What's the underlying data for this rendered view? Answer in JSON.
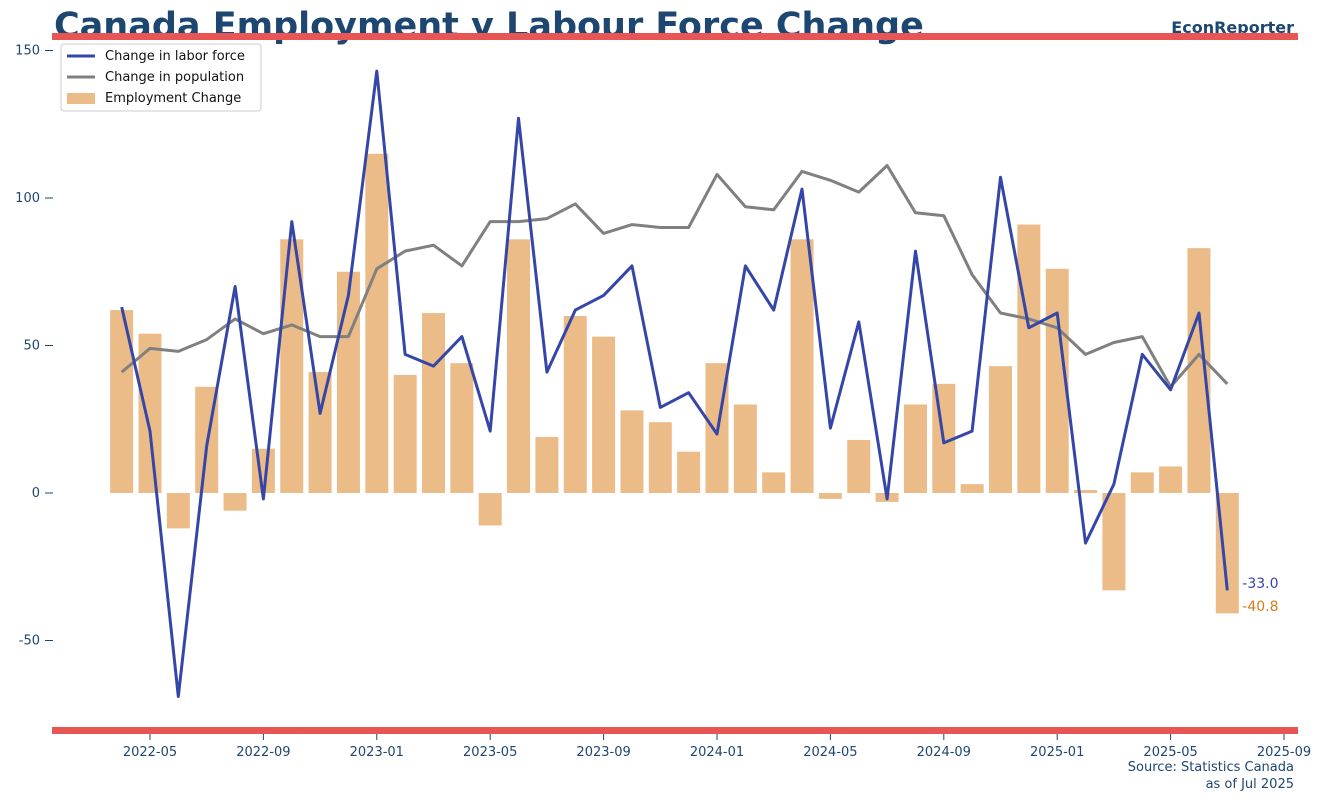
{
  "header": {
    "title": "Canada Employment v Labour Force Change",
    "brand": "EconReporter"
  },
  "footer": {
    "source_line1": "Source: Statistics Canada",
    "source_line2": "as of Jul 2025"
  },
  "colors": {
    "labor_force": "#3446a8",
    "population": "#808080",
    "employment": "#ebbb88",
    "accent_rule": "#e85555",
    "text": "#1d4770",
    "employment_label": "#d97d1a"
  },
  "chart_data": {
    "type": "bar",
    "title": "Canada Employment v Labour Force Change",
    "xlabel": "",
    "ylabel": "",
    "x": [
      "2022-04",
      "2022-05",
      "2022-06",
      "2022-07",
      "2022-08",
      "2022-09",
      "2022-10",
      "2022-11",
      "2022-12",
      "2023-01",
      "2023-02",
      "2023-03",
      "2023-04",
      "2023-05",
      "2023-06",
      "2023-07",
      "2023-08",
      "2023-09",
      "2023-10",
      "2023-11",
      "2023-12",
      "2024-01",
      "2024-02",
      "2024-03",
      "2024-04",
      "2024-05",
      "2024-06",
      "2024-07",
      "2024-08",
      "2024-09",
      "2024-10",
      "2024-11",
      "2024-12",
      "2025-01",
      "2025-02",
      "2025-03",
      "2025-04",
      "2025-05",
      "2025-06",
      "2025-07"
    ],
    "ylim": [
      -80,
      155
    ],
    "yticks": [
      -50,
      0,
      50,
      100,
      150
    ],
    "xticks": [
      "2022-05",
      "2022-09",
      "2023-01",
      "2023-05",
      "2023-09",
      "2024-01",
      "2024-05",
      "2024-09",
      "2025-01",
      "2025-05",
      "2025-09"
    ],
    "legend_position": "top-left",
    "grid": false,
    "series": [
      {
        "name": "Change in labor force",
        "type": "line",
        "values": [
          63,
          21,
          -69,
          16,
          70,
          -2,
          92,
          27,
          67,
          143,
          47,
          43,
          53,
          21,
          127,
          41,
          62,
          67,
          77,
          29,
          34,
          20,
          77,
          62,
          103,
          22,
          58,
          -2,
          82,
          17,
          21,
          107,
          56,
          61,
          -17,
          3,
          47,
          35,
          61,
          -33.0
        ]
      },
      {
        "name": "Change in population",
        "type": "line",
        "values": [
          41,
          49,
          48,
          52,
          59,
          54,
          57,
          53,
          53,
          76,
          82,
          84,
          77,
          92,
          92,
          93,
          98,
          88,
          91,
          90,
          90,
          108,
          97,
          96,
          109,
          106,
          102,
          111,
          95,
          94,
          74,
          61,
          59,
          56,
          47,
          51,
          53,
          36,
          47,
          37
        ]
      },
      {
        "name": "Employment Change",
        "type": "bar",
        "values": [
          62,
          54,
          -12,
          36,
          -6,
          15,
          86,
          41,
          75,
          115,
          40,
          61,
          44,
          -11,
          86,
          19,
          60,
          53,
          28,
          24,
          14,
          44,
          30,
          7,
          86,
          -2,
          18,
          -3,
          30,
          37,
          3,
          43,
          91,
          76,
          1,
          -33,
          7,
          9,
          83,
          -40.8
        ]
      }
    ],
    "end_labels": {
      "labor_force": "-33.0",
      "employment": "-40.8"
    }
  }
}
